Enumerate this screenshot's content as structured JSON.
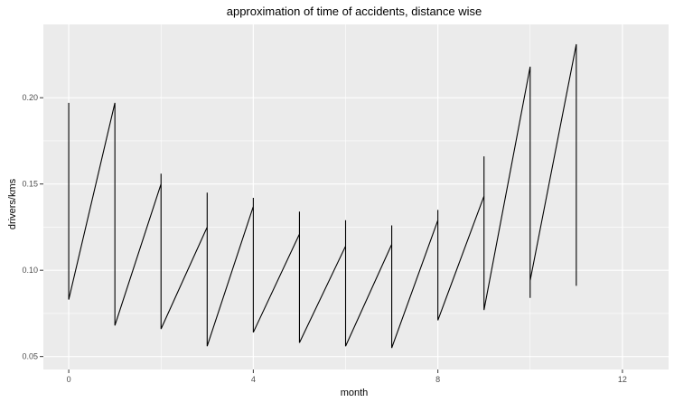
{
  "chart_data": {
    "type": "line",
    "title": "approximation of time of accidents, distance wise",
    "xlabel": "month",
    "ylabel": "drivers/kms",
    "xlim": [
      -0.55,
      13.0
    ],
    "ylim": [
      0.0425,
      0.2425
    ],
    "x_ticks": [
      0,
      4,
      8,
      12
    ],
    "y_ticks": [
      0.05,
      0.1,
      0.15,
      0.2
    ],
    "x_tick_labels": [
      "0",
      "4",
      "8",
      "12"
    ],
    "y_tick_labels": [
      "0.05",
      "0.10",
      "0.15",
      "0.20"
    ],
    "grid": true,
    "background": "#ebebeb",
    "line_color": "#000000",
    "points": [
      {
        "x": 0,
        "y": 0.197
      },
      {
        "x": 0,
        "y": 0.083
      },
      {
        "x": 1,
        "y": 0.197
      },
      {
        "x": 1,
        "y": 0.068
      },
      {
        "x": 2,
        "y": 0.15
      },
      {
        "x": 2,
        "y": 0.156
      },
      {
        "x": 2,
        "y": 0.066
      },
      {
        "x": 3,
        "y": 0.125
      },
      {
        "x": 3,
        "y": 0.145
      },
      {
        "x": 3,
        "y": 0.056
      },
      {
        "x": 4,
        "y": 0.137
      },
      {
        "x": 4,
        "y": 0.142
      },
      {
        "x": 4,
        "y": 0.064
      },
      {
        "x": 5,
        "y": 0.121
      },
      {
        "x": 5,
        "y": 0.134
      },
      {
        "x": 5,
        "y": 0.058
      },
      {
        "x": 6,
        "y": 0.114
      },
      {
        "x": 6,
        "y": 0.129
      },
      {
        "x": 6,
        "y": 0.056
      },
      {
        "x": 7,
        "y": 0.115
      },
      {
        "x": 7,
        "y": 0.126
      },
      {
        "x": 7,
        "y": 0.055
      },
      {
        "x": 8,
        "y": 0.129
      },
      {
        "x": 8,
        "y": 0.135
      },
      {
        "x": 8,
        "y": 0.071
      },
      {
        "x": 9,
        "y": 0.143
      },
      {
        "x": 9,
        "y": 0.166
      },
      {
        "x": 9,
        "y": 0.077
      },
      {
        "x": 10,
        "y": 0.218
      },
      {
        "x": 10,
        "y": 0.084
      },
      {
        "x": 10,
        "y": 0.094
      },
      {
        "x": 11,
        "y": 0.231
      },
      {
        "x": 11,
        "y": 0.091
      }
    ]
  }
}
